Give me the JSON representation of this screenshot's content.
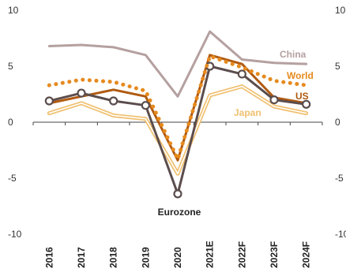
{
  "chart_data": {
    "type": "line",
    "title": "",
    "xlabel": "",
    "ylabel": "",
    "categories": [
      "2016",
      "2017",
      "2018",
      "2019",
      "2020",
      "2021E",
      "2022F",
      "2023F",
      "2024F"
    ],
    "ylim": [
      -10,
      10
    ],
    "yticks": [
      10,
      5,
      0,
      -5,
      -10
    ],
    "grid": false,
    "zero_line": true,
    "series": [
      {
        "name": "China",
        "color": "#b5a0a0",
        "style": "solid",
        "values": [
          6.8,
          6.9,
          6.7,
          6.0,
          2.3,
          8.1,
          5.6,
          5.3,
          5.2
        ]
      },
      {
        "name": "World",
        "color": "#e68a1e",
        "style": "dotted",
        "values": [
          3.3,
          3.8,
          3.6,
          2.8,
          -3.3,
          5.9,
          4.9,
          3.7,
          3.3
        ]
      },
      {
        "name": "US",
        "color": "#b05a10",
        "style": "solid",
        "values": [
          1.7,
          2.3,
          2.9,
          2.3,
          -3.4,
          6.0,
          5.2,
          2.2,
          1.7
        ]
      },
      {
        "name": "Japan",
        "color": "#f0c070",
        "style": "double",
        "values": [
          0.8,
          1.7,
          0.6,
          0.3,
          -4.6,
          2.4,
          3.2,
          1.4,
          0.8
        ]
      },
      {
        "name": "Eurozone",
        "color": "#5c4d4d",
        "style": "solid-markers",
        "values": [
          1.9,
          2.6,
          1.9,
          1.5,
          -6.4,
          5.0,
          4.3,
          2.0,
          1.6
        ]
      }
    ]
  },
  "colors": {
    "axis": "#444444",
    "tick_text": "#333333",
    "eurozone_label": "#222222"
  }
}
